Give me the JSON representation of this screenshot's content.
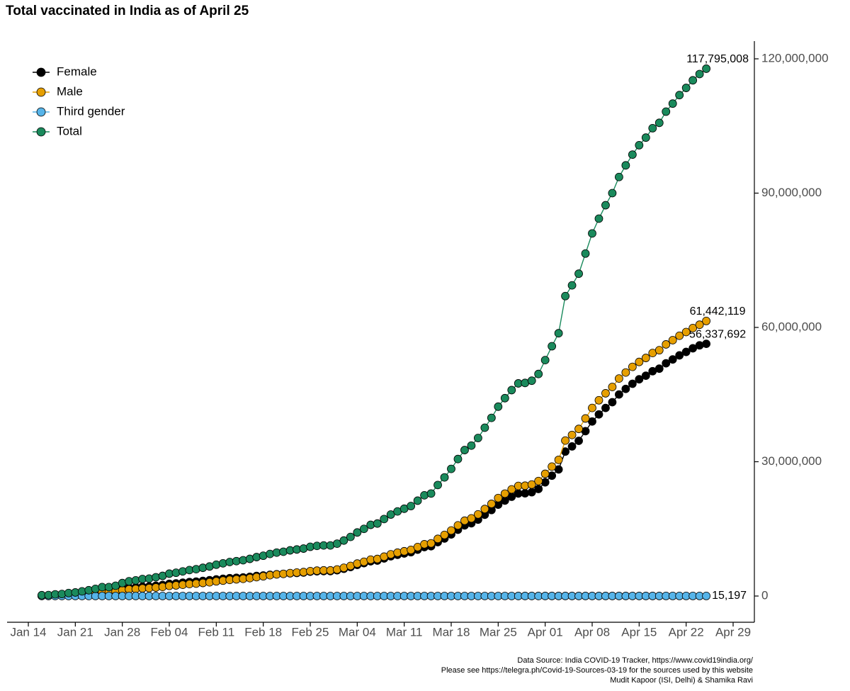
{
  "chart_data": {
    "type": "line",
    "title": "Total vaccinated in India as of April 25",
    "footnotes": [
      "Data Source: India COVID-19 Tracker, https://www.covid19india.org/",
      "Please see https://telegra.ph/Covid-19-Sources-03-19 for the sources used by this website",
      "Mudit Kapoor (ISI, Delhi) & Shamika Ravi"
    ],
    "legend": "top-left",
    "x": [
      "Jan 16",
      "Jan 17",
      "Jan 18",
      "Jan 19",
      "Jan 20",
      "Jan 21",
      "Jan 22",
      "Jan 23",
      "Jan 24",
      "Jan 25",
      "Jan 26",
      "Jan 27",
      "Jan 28",
      "Jan 29",
      "Jan 30",
      "Jan 31",
      "Feb 01",
      "Feb 02",
      "Feb 03",
      "Feb 04",
      "Feb 05",
      "Feb 06",
      "Feb 07",
      "Feb 08",
      "Feb 09",
      "Feb 10",
      "Feb 11",
      "Feb 12",
      "Feb 13",
      "Feb 14",
      "Feb 15",
      "Feb 16",
      "Feb 17",
      "Feb 18",
      "Feb 19",
      "Feb 20",
      "Feb 21",
      "Feb 22",
      "Feb 23",
      "Feb 24",
      "Feb 25",
      "Feb 26",
      "Feb 27",
      "Feb 28",
      "Mar 01",
      "Mar 02",
      "Mar 03",
      "Mar 04",
      "Mar 05",
      "Mar 06",
      "Mar 07",
      "Mar 08",
      "Mar 09",
      "Mar 10",
      "Mar 11",
      "Mar 12",
      "Mar 13",
      "Mar 14",
      "Mar 15",
      "Mar 16",
      "Mar 17",
      "Mar 18",
      "Mar 19",
      "Mar 20",
      "Mar 21",
      "Mar 22",
      "Mar 23",
      "Mar 24",
      "Mar 25",
      "Mar 26",
      "Mar 27",
      "Mar 28",
      "Mar 29",
      "Mar 30",
      "Mar 31",
      "Apr 01",
      "Apr 02",
      "Apr 03",
      "Apr 04",
      "Apr 05",
      "Apr 06",
      "Apr 07",
      "Apr 08",
      "Apr 09",
      "Apr 10",
      "Apr 11",
      "Apr 12",
      "Apr 13",
      "Apr 14",
      "Apr 15",
      "Apr 16",
      "Apr 17",
      "Apr 18",
      "Apr 19",
      "Apr 20",
      "Apr 21",
      "Apr 22",
      "Apr 23",
      "Apr 24",
      "Apr 25"
    ],
    "xlim": [
      "Jan 14",
      "Apr 29"
    ],
    "xticks": [
      "Jan 14",
      "Jan 21",
      "Jan 28",
      "Feb 04",
      "Feb 11",
      "Feb 18",
      "Feb 25",
      "Mar 04",
      "Mar 11",
      "Mar 18",
      "Mar 25",
      "Apr 01",
      "Apr 08",
      "Apr 15",
      "Apr 22",
      "Apr 29"
    ],
    "ylim": [
      0,
      120000000
    ],
    "yticks": [
      0,
      {
        "value": 30000000,
        "label": "30,000,000"
      },
      {
        "value": 60000000,
        "label": "60,000,000"
      },
      {
        "value": 90000000,
        "label": "90,000,000"
      },
      {
        "value": 120000000,
        "label": "120,000,000"
      }
    ],
    "series": [
      {
        "name": "Female",
        "color": "#000000",
        "values": [
          100000,
          120000,
          210000,
          250000,
          370000,
          440000,
          580000,
          720000,
          880000,
          1100000,
          1100000,
          1270000,
          1600000,
          1820000,
          1930000,
          2090000,
          2140000,
          2300000,
          2460000,
          2730000,
          2830000,
          2980000,
          3130000,
          3230000,
          3380000,
          3530000,
          3720000,
          3860000,
          4000000,
          4080000,
          4160000,
          4300000,
          4480000,
          4590000,
          4750000,
          4870000,
          4950000,
          5080000,
          5160000,
          5250000,
          5440000,
          5530000,
          5570000,
          5570000,
          5760000,
          6090000,
          6470000,
          6950000,
          7340000,
          7770000,
          7920000,
          8400000,
          8880000,
          9210000,
          9500000,
          9790000,
          10360000,
          10930000,
          11120000,
          12030000,
          12850000,
          13760000,
          14810000,
          15770000,
          16250000,
          17060000,
          18160000,
          19210000,
          20410000,
          21320000,
          22180000,
          22900000,
          22950000,
          23190000,
          23910000,
          25400000,
          26890000,
          28280000,
          32270000,
          33420000,
          34670000,
          36830000,
          38990000,
          40570000,
          42010000,
          43300000,
          45020000,
          46270000,
          47410000,
          48410000,
          49220000,
          50220000,
          50790000,
          51990000,
          52850000,
          53760000,
          54530000,
          55340000,
          56000000,
          56337692
        ],
        "value_labels": [
          null,
          null,
          null,
          null,
          null,
          null,
          null,
          null,
          null,
          null,
          null,
          null,
          null,
          null,
          null,
          null,
          null,
          null,
          null,
          null,
          null,
          null,
          null,
          null,
          null,
          null,
          null,
          null,
          null,
          null,
          null,
          null,
          null,
          null,
          null,
          null,
          null,
          null,
          null,
          null,
          null,
          null,
          null,
          null,
          null,
          null,
          null,
          null,
          null,
          null,
          null,
          null,
          null,
          null,
          null,
          null,
          null,
          null,
          null,
          null,
          null,
          null,
          null,
          null,
          null,
          null,
          null,
          null,
          null,
          null,
          null,
          null,
          null,
          null,
          null,
          null,
          null,
          null,
          null,
          null,
          null,
          null,
          null,
          null,
          null,
          null,
          null,
          null,
          null,
          null,
          null,
          null,
          null,
          null,
          null,
          null,
          null,
          null,
          null,
          "56,337,692"
        ]
      },
      {
        "name": "Male",
        "color": "#E69F00",
        "values": [
          90000,
          100000,
          170000,
          200000,
          300000,
          360000,
          470000,
          580000,
          720000,
          900000,
          900000,
          1030000,
          1300000,
          1480000,
          1570000,
          1710000,
          1760000,
          1900000,
          2040000,
          2270000,
          2370000,
          2520000,
          2670000,
          2770000,
          2920000,
          3070000,
          3280000,
          3440000,
          3600000,
          3720000,
          3840000,
          4000000,
          4220000,
          4410000,
          4650000,
          4830000,
          4950000,
          5120000,
          5240000,
          5350000,
          5560000,
          5670000,
          5730000,
          5730000,
          5940000,
          6310000,
          6730000,
          7250000,
          7660000,
          8130000,
          8280000,
          8800000,
          9320000,
          9690000,
          10000000,
          10310000,
          10940000,
          11570000,
          11780000,
          12770000,
          13650000,
          14640000,
          15790000,
          16830000,
          17350000,
          18240000,
          19440000,
          20590000,
          21890000,
          22880000,
          23820000,
          24600000,
          24650000,
          24910000,
          25690000,
          27300000,
          28910000,
          30420000,
          34730000,
          35980000,
          37330000,
          39670000,
          42010000,
          43730000,
          45290000,
          46700000,
          48580000,
          49930000,
          51190000,
          52290000,
          53180000,
          54280000,
          54910000,
          56210000,
          57150000,
          58140000,
          58970000,
          59860000,
          60600000,
          61442119
        ],
        "value_labels": [
          null,
          null,
          null,
          null,
          null,
          null,
          null,
          null,
          null,
          null,
          null,
          null,
          null,
          null,
          null,
          null,
          null,
          null,
          null,
          null,
          null,
          null,
          null,
          null,
          null,
          null,
          null,
          null,
          null,
          null,
          null,
          null,
          null,
          null,
          null,
          null,
          null,
          null,
          null,
          null,
          null,
          null,
          null,
          null,
          null,
          null,
          null,
          null,
          null,
          null,
          null,
          null,
          null,
          null,
          null,
          null,
          null,
          null,
          null,
          null,
          null,
          null,
          null,
          null,
          null,
          null,
          null,
          null,
          null,
          null,
          null,
          null,
          null,
          null,
          null,
          null,
          null,
          null,
          null,
          null,
          null,
          null,
          null,
          null,
          null,
          null,
          null,
          null,
          null,
          null,
          null,
          null,
          null,
          null,
          null,
          null,
          null,
          null,
          null,
          "61,442,119"
        ]
      },
      {
        "name": "Third gender",
        "color": "#56B4E9",
        "values": [
          20,
          30,
          50,
          60,
          90,
          100,
          140,
          170,
          210,
          260,
          260,
          300,
          370,
          430,
          450,
          490,
          500,
          540,
          580,
          650,
          670,
          710,
          750,
          770,
          810,
          850,
          900,
          940,
          980,
          1010,
          1030,
          1070,
          1120,
          1160,
          1210,
          1250,
          1280,
          1320,
          1340,
          1370,
          1420,
          1440,
          1460,
          1460,
          1510,
          1600,
          1700,
          1830,
          1940,
          2050,
          2090,
          2220,
          2350,
          2440,
          2520,
          2590,
          2750,
          2900,
          2950,
          3200,
          3420,
          3660,
          3950,
          4210,
          4330,
          4550,
          4850,
          5130,
          5460,
          5700,
          5930,
          6130,
          6140,
          6200,
          6400,
          6800,
          7200,
          7570,
          8640,
          8950,
          9290,
          9870,
          10450,
          10870,
          11260,
          11610,
          12070,
          12410,
          12720,
          12990,
          13210,
          13480,
          13640,
          13960,
          14190,
          14430,
          14640,
          14860,
          15040,
          15197
        ],
        "value_labels": [
          null,
          null,
          null,
          null,
          null,
          null,
          null,
          null,
          null,
          null,
          null,
          null,
          null,
          null,
          null,
          null,
          null,
          null,
          null,
          null,
          null,
          null,
          null,
          null,
          null,
          null,
          null,
          null,
          null,
          null,
          null,
          null,
          null,
          null,
          null,
          null,
          null,
          null,
          null,
          null,
          null,
          null,
          null,
          null,
          null,
          null,
          null,
          null,
          null,
          null,
          null,
          null,
          null,
          null,
          null,
          null,
          null,
          null,
          null,
          null,
          null,
          null,
          null,
          null,
          null,
          null,
          null,
          null,
          null,
          null,
          null,
          null,
          null,
          null,
          null,
          null,
          null,
          null,
          null,
          null,
          null,
          null,
          null,
          null,
          null,
          null,
          null,
          null,
          null,
          null,
          null,
          null,
          null,
          null,
          null,
          null,
          null,
          null,
          null,
          "15,197"
        ]
      },
      {
        "name": "Total",
        "color": "#1A8A5C",
        "values": [
          190000,
          220000,
          380000,
          450000,
          670000,
          800000,
          1050000,
          1300000,
          1600000,
          2000000,
          2000000,
          2300000,
          2900000,
          3300000,
          3500000,
          3800000,
          3900000,
          4200000,
          4500000,
          5000000,
          5200000,
          5500000,
          5800000,
          6000000,
          6300000,
          6600000,
          7000000,
          7300000,
          7600000,
          7800000,
          8000000,
          8300000,
          8700000,
          9000000,
          9400000,
          9700000,
          9900000,
          10200000,
          10400000,
          10600000,
          11000000,
          11200000,
          11300000,
          11300000,
          11700000,
          12400000,
          13200000,
          14200000,
          15000000,
          15900000,
          16200000,
          17200000,
          18200000,
          18900000,
          19500000,
          20100000,
          21300000,
          22500000,
          22900000,
          24800000,
          26500000,
          28400000,
          30600000,
          32600000,
          33600000,
          35300000,
          37600000,
          39800000,
          42300000,
          44200000,
          46000000,
          47500000,
          47600000,
          48100000,
          49600000,
          52700000,
          55800000,
          58700000,
          67000000,
          69400000,
          72000000,
          76500000,
          81000000,
          84300000,
          87300000,
          90000000,
          93600000,
          96200000,
          98600000,
          100700000,
          102400000,
          104500000,
          105700000,
          108200000,
          110000000,
          111900000,
          113500000,
          115200000,
          116600000,
          117795008
        ],
        "value_labels": [
          null,
          null,
          null,
          null,
          null,
          null,
          null,
          null,
          null,
          null,
          null,
          null,
          null,
          null,
          null,
          null,
          null,
          null,
          null,
          null,
          null,
          null,
          null,
          null,
          null,
          null,
          null,
          null,
          null,
          null,
          null,
          null,
          null,
          null,
          null,
          null,
          null,
          null,
          null,
          null,
          null,
          null,
          null,
          null,
          null,
          null,
          null,
          null,
          null,
          null,
          null,
          null,
          null,
          null,
          null,
          null,
          null,
          null,
          null,
          null,
          null,
          null,
          null,
          null,
          null,
          null,
          null,
          null,
          null,
          null,
          null,
          null,
          null,
          null,
          null,
          null,
          null,
          null,
          null,
          null,
          null,
          null,
          null,
          null,
          null,
          null,
          null,
          null,
          null,
          null,
          null,
          null,
          null,
          null,
          null,
          null,
          null,
          null,
          null,
          "117,795,008"
        ]
      }
    ]
  }
}
